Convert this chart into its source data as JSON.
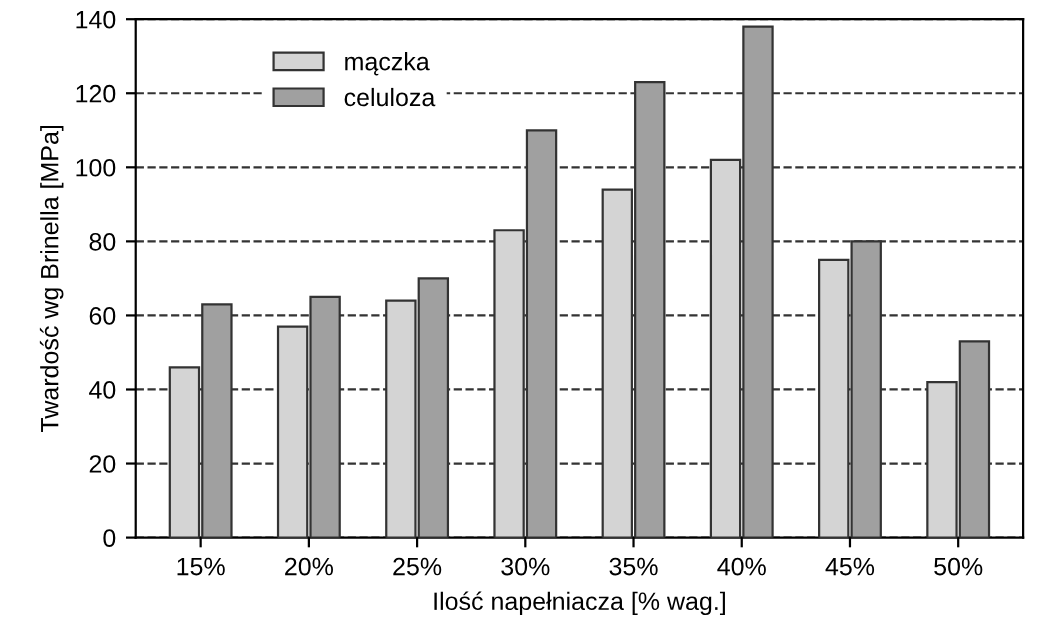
{
  "chart_data": {
    "type": "bar",
    "xlabel": "Ilość napełniacza [% wag.]",
    "ylabel": "Twardość wg Brinella [MPa]",
    "categories": [
      "15%",
      "20%",
      "25%",
      "30%",
      "35%",
      "40%",
      "45%",
      "50%"
    ],
    "series": [
      {
        "name": "mączka",
        "color": "#d4d4d4",
        "values": [
          46,
          57,
          64,
          83,
          94,
          102,
          75,
          42
        ]
      },
      {
        "name": "celuloza",
        "color": "#a0a0a0",
        "values": [
          63,
          65,
          70,
          110,
          123,
          138,
          80,
          53
        ]
      }
    ],
    "ylim": [
      0,
      140
    ],
    "yticks": [
      0,
      20,
      40,
      60,
      80,
      100,
      120,
      140
    ],
    "grid": "y",
    "legend": "top left"
  }
}
